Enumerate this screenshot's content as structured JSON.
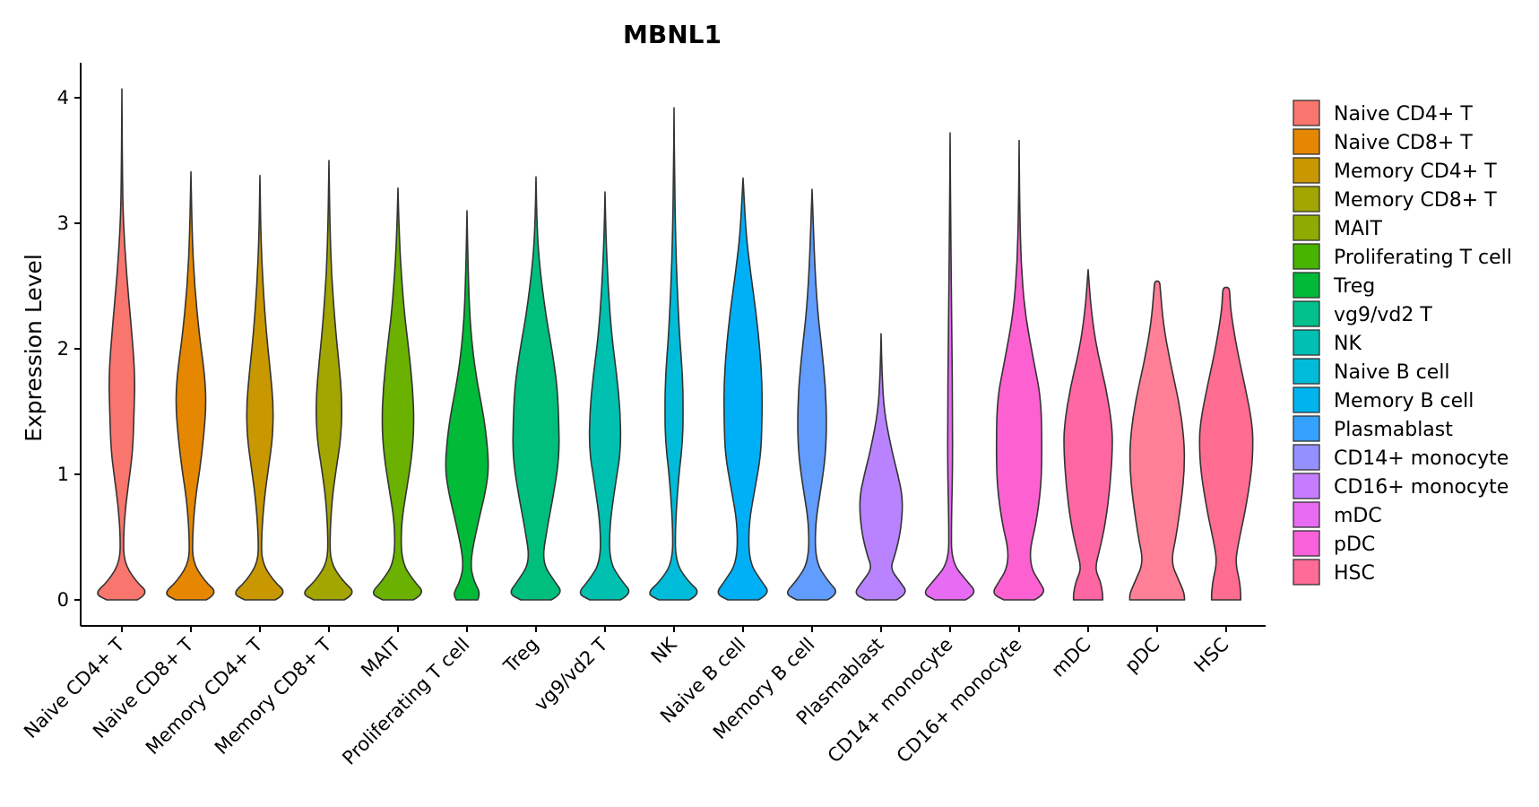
{
  "chart_data": {
    "type": "violin",
    "title": "MBNL1",
    "xlabel": "",
    "ylabel": "Expression Level",
    "ylim": [
      -0.2,
      4.25
    ],
    "yticks": [
      0,
      1,
      2,
      3,
      4
    ],
    "grid": false,
    "legend_position": "right",
    "categories": [
      "Naive CD4+ T",
      "Naive CD8+ T",
      "Memory CD4+ T",
      "Memory CD8+ T",
      "MAIT",
      "Proliferating T cell",
      "Treg",
      "vg9/vd2 T",
      "NK",
      "Naive B cell",
      "Memory B cell",
      "Plasmablast",
      "CD14+ monocyte",
      "CD16+ monocyte",
      "mDC",
      "pDC",
      "HSC"
    ],
    "colors": [
      "#F8766D",
      "#E58700",
      "#C99800",
      "#A3A500",
      "#6BB100",
      "#00BA38",
      "#00BF7D",
      "#00C0AF",
      "#00BCD8",
      "#00B0F6",
      "#619CFF",
      "#B983FF",
      "#E76BF3",
      "#FD61D1",
      "#FF67A4",
      "#FF7F96",
      "#FF6C91"
    ],
    "legend_colors": [
      "#F8766D",
      "#E58700",
      "#C99800",
      "#A3A500",
      "#8FAA00",
      "#48B400",
      "#00BA38",
      "#00C08B",
      "#00BFB3",
      "#00BCD8",
      "#00B4F0",
      "#35A2FF",
      "#9590FF",
      "#C77CFF",
      "#E86BF3",
      "#FA62DB",
      "#FF6C98"
    ],
    "max_values": [
      4.07,
      3.41,
      3.38,
      3.5,
      3.28,
      3.1,
      3.37,
      3.25,
      3.92,
      3.36,
      3.27,
      2.12,
      3.72,
      3.66,
      2.63,
      2.54,
      2.49
    ],
    "violins": [
      [
        [
          0,
          0.5
        ],
        [
          0.05,
          0.9
        ],
        [
          0.15,
          0.45
        ],
        [
          0.3,
          0.07
        ],
        [
          0.5,
          0.05
        ],
        [
          0.75,
          0.12
        ],
        [
          1.0,
          0.26
        ],
        [
          1.2,
          0.36
        ],
        [
          1.5,
          0.4
        ],
        [
          1.8,
          0.43
        ],
        [
          2.2,
          0.3
        ],
        [
          2.6,
          0.15
        ],
        [
          3.0,
          0.05
        ],
        [
          3.3,
          0.02
        ],
        [
          4.07,
          0
        ]
      ],
      [
        [
          0,
          0.5
        ],
        [
          0.05,
          0.9
        ],
        [
          0.15,
          0.45
        ],
        [
          0.3,
          0.06
        ],
        [
          0.5,
          0.05
        ],
        [
          0.8,
          0.14
        ],
        [
          1.05,
          0.3
        ],
        [
          1.3,
          0.42
        ],
        [
          1.55,
          0.5
        ],
        [
          1.8,
          0.45
        ],
        [
          2.1,
          0.28
        ],
        [
          2.5,
          0.12
        ],
        [
          2.9,
          0.04
        ],
        [
          3.41,
          0
        ]
      ],
      [
        [
          0,
          0.5
        ],
        [
          0.05,
          0.9
        ],
        [
          0.15,
          0.45
        ],
        [
          0.3,
          0.06
        ],
        [
          0.5,
          0.05
        ],
        [
          0.8,
          0.14
        ],
        [
          1.05,
          0.28
        ],
        [
          1.3,
          0.42
        ],
        [
          1.55,
          0.44
        ],
        [
          1.8,
          0.35
        ],
        [
          2.1,
          0.22
        ],
        [
          2.5,
          0.1
        ],
        [
          2.9,
          0.03
        ],
        [
          3.38,
          0
        ]
      ],
      [
        [
          0,
          0.5
        ],
        [
          0.05,
          0.9
        ],
        [
          0.15,
          0.45
        ],
        [
          0.3,
          0.05
        ],
        [
          0.5,
          0.03
        ],
        [
          0.8,
          0.1
        ],
        [
          1.05,
          0.24
        ],
        [
          1.3,
          0.4
        ],
        [
          1.6,
          0.43
        ],
        [
          1.9,
          0.32
        ],
        [
          2.2,
          0.2
        ],
        [
          2.6,
          0.08
        ],
        [
          3.0,
          0.03
        ],
        [
          3.5,
          0
        ]
      ],
      [
        [
          0,
          0.5
        ],
        [
          0.05,
          0.9
        ],
        [
          0.15,
          0.52
        ],
        [
          0.3,
          0.12
        ],
        [
          0.6,
          0.1
        ],
        [
          0.9,
          0.3
        ],
        [
          1.15,
          0.46
        ],
        [
          1.4,
          0.53
        ],
        [
          1.7,
          0.48
        ],
        [
          2.0,
          0.35
        ],
        [
          2.3,
          0.2
        ],
        [
          2.7,
          0.08
        ],
        [
          3.0,
          0.03
        ],
        [
          3.28,
          0
        ]
      ],
      [
        [
          0,
          0.35
        ],
        [
          0.05,
          0.45
        ],
        [
          0.15,
          0.22
        ],
        [
          0.3,
          0.1
        ],
        [
          0.6,
          0.35
        ],
        [
          0.85,
          0.6
        ],
        [
          1.05,
          0.72
        ],
        [
          1.3,
          0.64
        ],
        [
          1.5,
          0.52
        ],
        [
          1.75,
          0.32
        ],
        [
          2.0,
          0.18
        ],
        [
          2.3,
          0.08
        ],
        [
          2.7,
          0.03
        ],
        [
          3.1,
          0
        ]
      ],
      [
        [
          0,
          0.5
        ],
        [
          0.05,
          0.9
        ],
        [
          0.15,
          0.6
        ],
        [
          0.3,
          0.2
        ],
        [
          0.55,
          0.35
        ],
        [
          0.9,
          0.62
        ],
        [
          1.15,
          0.76
        ],
        [
          1.4,
          0.75
        ],
        [
          1.7,
          0.7
        ],
        [
          2.0,
          0.52
        ],
        [
          2.3,
          0.3
        ],
        [
          2.7,
          0.1
        ],
        [
          3.0,
          0.03
        ],
        [
          3.37,
          0
        ]
      ],
      [
        [
          0,
          0.5
        ],
        [
          0.05,
          0.9
        ],
        [
          0.15,
          0.55
        ],
        [
          0.3,
          0.15
        ],
        [
          0.6,
          0.15
        ],
        [
          0.95,
          0.36
        ],
        [
          1.2,
          0.52
        ],
        [
          1.5,
          0.5
        ],
        [
          1.8,
          0.38
        ],
        [
          2.1,
          0.22
        ],
        [
          2.5,
          0.1
        ],
        [
          2.9,
          0.03
        ],
        [
          3.25,
          0
        ]
      ],
      [
        [
          0,
          0.5
        ],
        [
          0.05,
          0.9
        ],
        [
          0.15,
          0.45
        ],
        [
          0.3,
          0.05
        ],
        [
          0.6,
          0.04
        ],
        [
          1.0,
          0.16
        ],
        [
          1.25,
          0.28
        ],
        [
          1.5,
          0.3
        ],
        [
          1.8,
          0.28
        ],
        [
          2.1,
          0.18
        ],
        [
          2.5,
          0.1
        ],
        [
          2.9,
          0.05
        ],
        [
          3.3,
          0.02
        ],
        [
          3.92,
          0
        ]
      ],
      [
        [
          0,
          0.5
        ],
        [
          0.05,
          0.9
        ],
        [
          0.15,
          0.6
        ],
        [
          0.3,
          0.2
        ],
        [
          0.6,
          0.18
        ],
        [
          0.9,
          0.4
        ],
        [
          1.15,
          0.58
        ],
        [
          1.4,
          0.62
        ],
        [
          1.7,
          0.63
        ],
        [
          2.0,
          0.55
        ],
        [
          2.3,
          0.42
        ],
        [
          2.6,
          0.25
        ],
        [
          2.9,
          0.1
        ],
        [
          3.36,
          0
        ]
      ],
      [
        [
          0,
          0.5
        ],
        [
          0.05,
          0.9
        ],
        [
          0.15,
          0.52
        ],
        [
          0.3,
          0.12
        ],
        [
          0.6,
          0.1
        ],
        [
          0.9,
          0.3
        ],
        [
          1.15,
          0.44
        ],
        [
          1.4,
          0.48
        ],
        [
          1.7,
          0.44
        ],
        [
          2.0,
          0.32
        ],
        [
          2.3,
          0.18
        ],
        [
          2.7,
          0.08
        ],
        [
          3.27,
          0
        ]
      ],
      [
        [
          0,
          0.5
        ],
        [
          0.05,
          0.9
        ],
        [
          0.15,
          0.6
        ],
        [
          0.25,
          0.3
        ],
        [
          0.35,
          0.45
        ],
        [
          0.55,
          0.65
        ],
        [
          0.8,
          0.72
        ],
        [
          1.0,
          0.55
        ],
        [
          1.2,
          0.34
        ],
        [
          1.5,
          0.1
        ],
        [
          1.8,
          0.03
        ],
        [
          2.12,
          0
        ]
      ],
      [
        [
          0,
          0.5
        ],
        [
          0.05,
          0.9
        ],
        [
          0.15,
          0.55
        ],
        [
          0.3,
          0.05
        ],
        [
          0.6,
          0.04
        ],
        [
          1.0,
          0.08
        ],
        [
          1.5,
          0.08
        ],
        [
          2.0,
          0.06
        ],
        [
          2.5,
          0.04
        ],
        [
          3.0,
          0.02
        ],
        [
          3.72,
          0
        ]
      ],
      [
        [
          0,
          0.5
        ],
        [
          0.05,
          0.9
        ],
        [
          0.15,
          0.65
        ],
        [
          0.25,
          0.4
        ],
        [
          0.4,
          0.35
        ],
        [
          0.6,
          0.55
        ],
        [
          0.9,
          0.72
        ],
        [
          1.2,
          0.75
        ],
        [
          1.6,
          0.72
        ],
        [
          1.9,
          0.48
        ],
        [
          2.3,
          0.18
        ],
        [
          2.7,
          0.06
        ],
        [
          3.1,
          0.02
        ],
        [
          3.66,
          0
        ]
      ],
      [
        [
          0,
          0.48
        ],
        [
          0.05,
          0.48
        ],
        [
          0.15,
          0.4
        ],
        [
          0.25,
          0.22
        ],
        [
          0.4,
          0.38
        ],
        [
          0.6,
          0.56
        ],
        [
          0.9,
          0.72
        ],
        [
          1.2,
          0.8
        ],
        [
          1.4,
          0.78
        ],
        [
          1.7,
          0.58
        ],
        [
          2.0,
          0.28
        ],
        [
          2.3,
          0.1
        ],
        [
          2.63,
          0
        ]
      ],
      [
        [
          0,
          0.9
        ],
        [
          0.05,
          0.9
        ],
        [
          0.15,
          0.72
        ],
        [
          0.3,
          0.45
        ],
        [
          0.5,
          0.62
        ],
        [
          0.8,
          0.8
        ],
        [
          1.05,
          0.9
        ],
        [
          1.3,
          0.88
        ],
        [
          1.6,
          0.7
        ],
        [
          1.9,
          0.42
        ],
        [
          2.2,
          0.2
        ],
        [
          2.48,
          0.1
        ],
        [
          2.54,
          0.08
        ]
      ],
      [
        [
          0,
          0.48
        ],
        [
          0.05,
          0.48
        ],
        [
          0.15,
          0.44
        ],
        [
          0.3,
          0.3
        ],
        [
          0.45,
          0.4
        ],
        [
          0.7,
          0.62
        ],
        [
          1.0,
          0.82
        ],
        [
          1.2,
          0.88
        ],
        [
          1.4,
          0.86
        ],
        [
          1.7,
          0.62
        ],
        [
          2.0,
          0.35
        ],
        [
          2.3,
          0.15
        ],
        [
          2.43,
          0.12
        ],
        [
          2.49,
          0.1
        ]
      ]
    ]
  }
}
